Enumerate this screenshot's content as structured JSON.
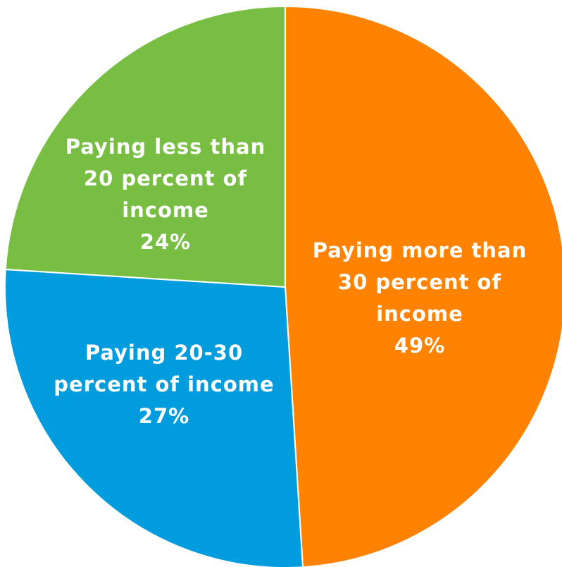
{
  "chart_data": {
    "type": "pie",
    "title": "",
    "slices": [
      {
        "lines": [
          "Paying more than",
          "30 percent of",
          "income"
        ],
        "value": 49,
        "value_label": "49%",
        "color": "#FF8200"
      },
      {
        "lines": [
          "Paying 20-30",
          "percent of income"
        ],
        "value": 27,
        "value_label": "27%",
        "color": "#009CDE"
      },
      {
        "lines": [
          "Paying less than",
          "20 percent of",
          "income"
        ],
        "value": 24,
        "value_label": "24%",
        "color": "#78BE43"
      }
    ],
    "start": "12 o'clock",
    "direction": "clockwise",
    "legend": "none",
    "labels": "inside slices"
  }
}
